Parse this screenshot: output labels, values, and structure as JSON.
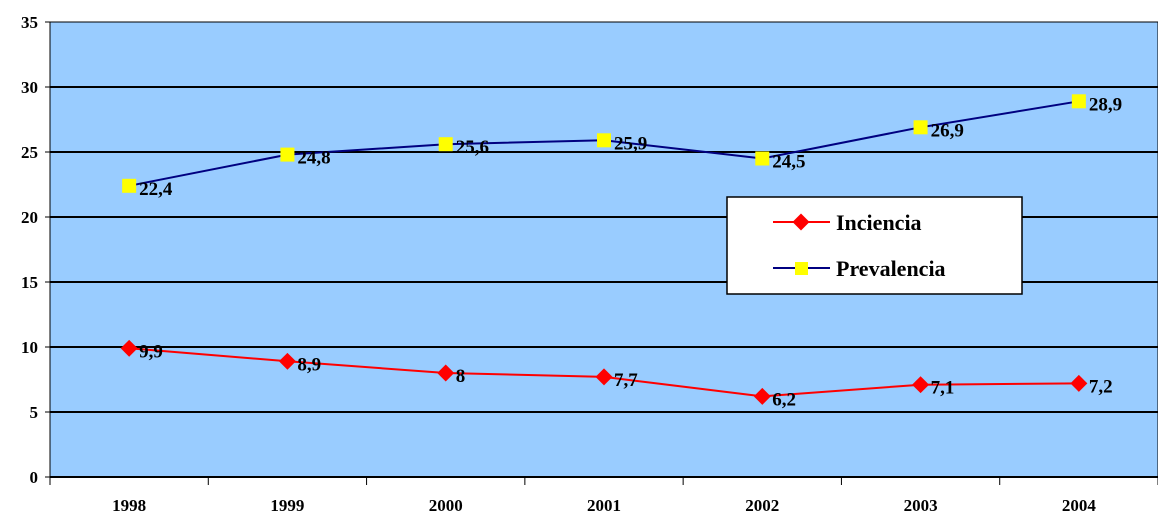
{
  "chart_data": {
    "type": "line",
    "categories": [
      "1998",
      "1999",
      "2000",
      "2001",
      "2002",
      "2003",
      "2004"
    ],
    "series": [
      {
        "name": "Inciencia",
        "values": [
          9.9,
          8.9,
          8,
          7.7,
          6.2,
          7.1,
          7.2
        ],
        "labels": [
          "9,9",
          "8,9",
          "8",
          "7,7",
          "6,2",
          "7,1",
          "7,2"
        ],
        "line_color": "#ff0000",
        "marker_color": "#ff0000",
        "marker": "diamond"
      },
      {
        "name": "Prevalencia",
        "values": [
          22.4,
          24.8,
          25.6,
          25.9,
          24.5,
          26.9,
          28.9
        ],
        "labels": [
          "22,4",
          "24,8",
          "25,6",
          "25,9",
          "24,5",
          "26,9",
          "28,9"
        ],
        "line_color": "#000080",
        "marker_color": "#ffff00",
        "marker": "square"
      }
    ],
    "ylim": [
      0,
      35
    ],
    "yticks": [
      "0",
      "5",
      "10",
      "15",
      "20",
      "25",
      "30",
      "35"
    ],
    "ytick_values": [
      0,
      5,
      10,
      15,
      20,
      25,
      30,
      35
    ],
    "grid": true,
    "legend_position": "center-right",
    "plot_background": "#99ccff",
    "title": "",
    "xlabel": "",
    "ylabel": ""
  }
}
